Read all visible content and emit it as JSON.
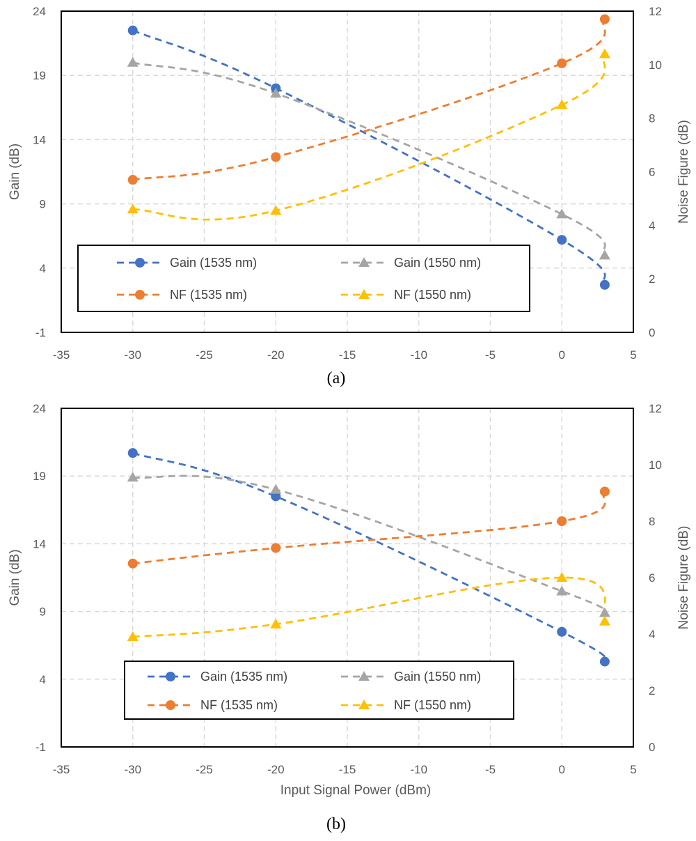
{
  "colors": {
    "gain_1535": "#4472C4",
    "nf_1535": "#ED7D31",
    "gain_1550": "#A5A5A5",
    "nf_1550": "#FFC000",
    "grid": "#D9D9D9",
    "axis_text": "#595959"
  },
  "chart_data": [
    {
      "type": "line",
      "caption": "(a)",
      "xlabel": "",
      "ylabel": "Gain (dB)",
      "y2label": "Noise Figure (dB)",
      "xlim": [
        -35,
        5
      ],
      "ylim": [
        -1,
        24
      ],
      "y2lim": [
        0,
        12
      ],
      "xticks": [
        -35,
        -30,
        -25,
        -20,
        -15,
        -10,
        -5,
        0,
        5
      ],
      "yticks": [
        -1,
        4,
        9,
        14,
        19,
        24
      ],
      "y2ticks": [
        0,
        2,
        4,
        6,
        8,
        10,
        12
      ],
      "grid": true,
      "legend_position": "bottom-left (inside)",
      "line_style": "dashed, smoothed",
      "series": [
        {
          "name": "Gain (1535 nm)",
          "axis": "left",
          "marker": "circle",
          "color": "#4472C4",
          "x": [
            -30,
            -20,
            0,
            3
          ],
          "y": [
            22.5,
            18.0,
            6.2,
            2.7
          ]
        },
        {
          "name": "Gain (1550 nm)",
          "axis": "left",
          "marker": "triangle",
          "color": "#A5A5A5",
          "x": [
            -30,
            -20,
            0,
            3
          ],
          "y": [
            20.0,
            17.6,
            8.2,
            5.0
          ]
        },
        {
          "name": "NF (1535 nm)",
          "axis": "right",
          "marker": "circle",
          "color": "#ED7D31",
          "x": [
            -30,
            -20,
            0,
            3
          ],
          "y": [
            5.7,
            6.55,
            10.05,
            11.7
          ]
        },
        {
          "name": "NF (1550 nm)",
          "axis": "right",
          "marker": "triangle",
          "color": "#FFC000",
          "x": [
            -30,
            -20,
            0,
            3
          ],
          "y": [
            4.6,
            4.55,
            8.5,
            10.4
          ]
        }
      ]
    },
    {
      "type": "line",
      "caption": "(b)",
      "xlabel": "Input Signal Power (dBm)",
      "ylabel": "Gain (dB)",
      "y2label": "Noise Figure (dB)",
      "xlim": [
        -35,
        5
      ],
      "ylim": [
        -1,
        24
      ],
      "y2lim": [
        0,
        12
      ],
      "xticks": [
        -35,
        -30,
        -25,
        -20,
        -15,
        -10,
        -5,
        0,
        5
      ],
      "yticks": [
        -1,
        4,
        9,
        14,
        19,
        24
      ],
      "y2ticks": [
        0,
        2,
        4,
        6,
        8,
        10,
        12
      ],
      "grid": true,
      "legend_position": "bottom-center (inside)",
      "line_style": "dashed, smoothed",
      "series": [
        {
          "name": "Gain (1535 nm)",
          "axis": "left",
          "marker": "circle",
          "color": "#4472C4",
          "x": [
            -30,
            -20,
            0,
            3
          ],
          "y": [
            20.7,
            17.5,
            7.5,
            5.3
          ]
        },
        {
          "name": "Gain (1550 nm)",
          "axis": "left",
          "marker": "triangle",
          "color": "#A5A5A5",
          "x": [
            -30,
            -20,
            0,
            3
          ],
          "y": [
            18.9,
            18.0,
            10.5,
            8.9
          ]
        },
        {
          "name": "NF (1535 nm)",
          "axis": "right",
          "marker": "circle",
          "color": "#ED7D31",
          "x": [
            -30,
            -20,
            0,
            3
          ],
          "y": [
            6.5,
            7.05,
            8.0,
            9.05
          ]
        },
        {
          "name": "NF (1550 nm)",
          "axis": "right",
          "marker": "triangle",
          "color": "#FFC000",
          "x": [
            -30,
            -20,
            0,
            3
          ],
          "y": [
            3.9,
            4.35,
            6.0,
            4.45
          ]
        }
      ]
    }
  ]
}
